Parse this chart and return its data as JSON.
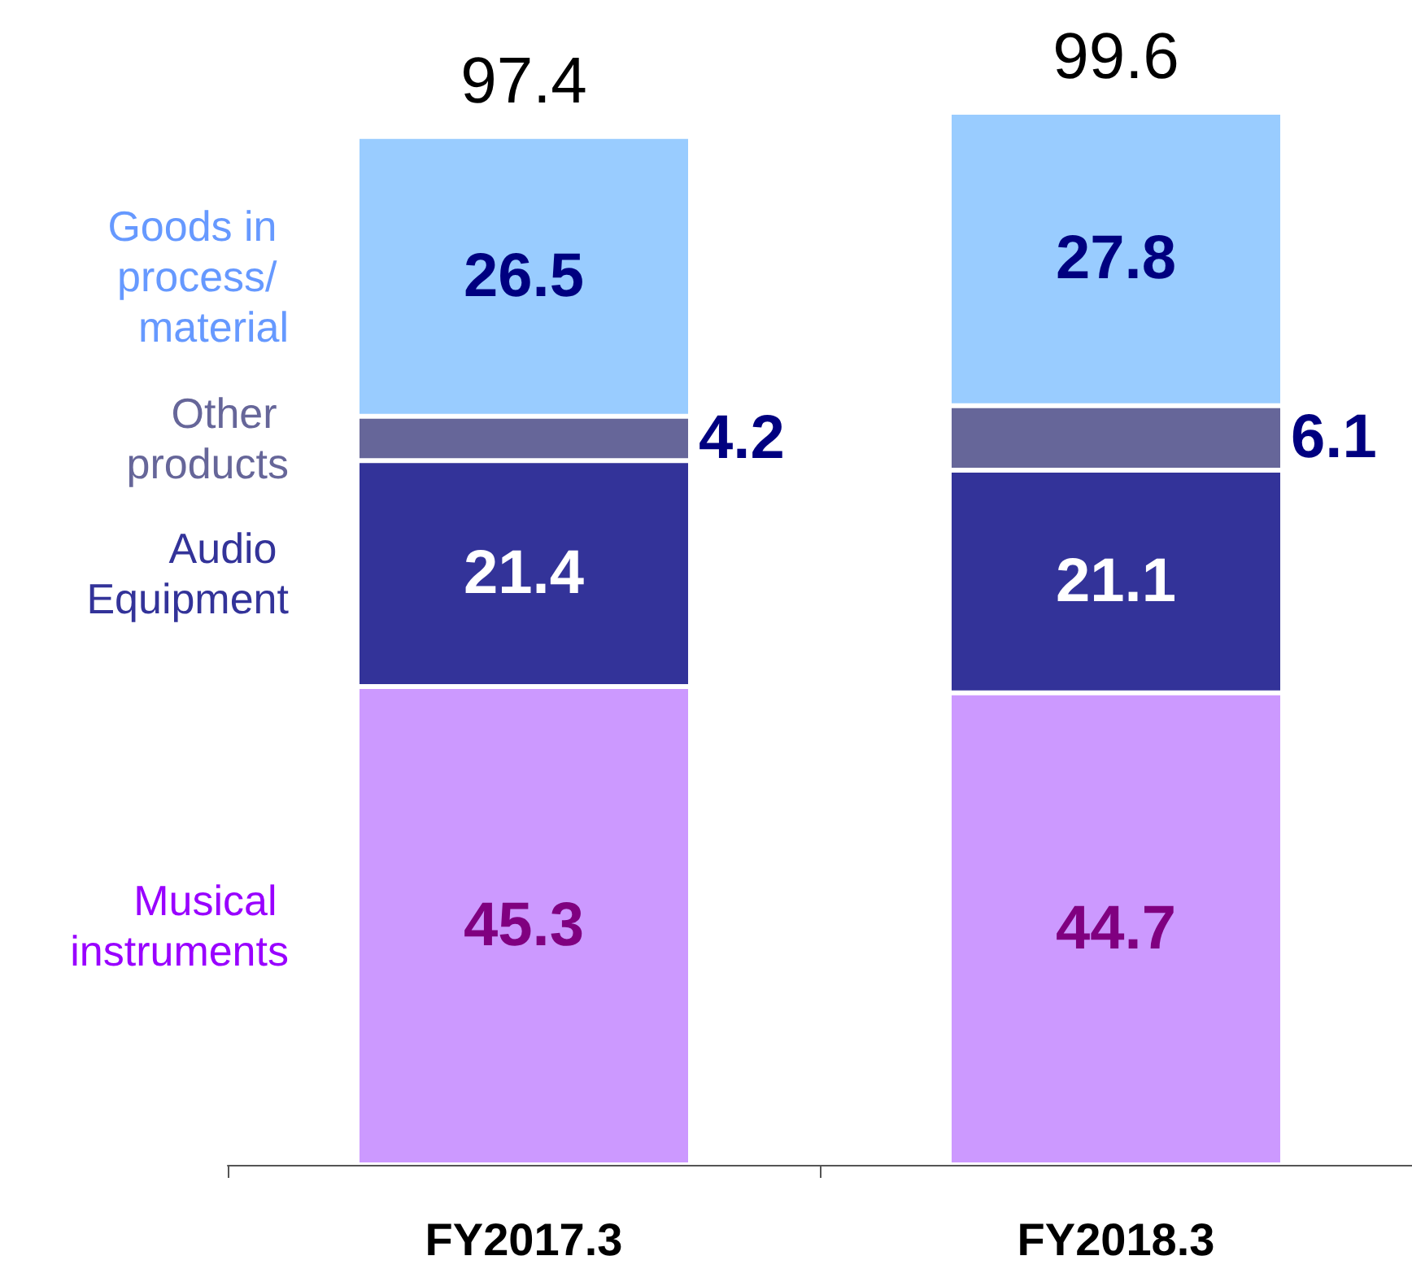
{
  "chart_data": {
    "type": "bar",
    "stacked": true,
    "categories": [
      "FY2017.3",
      "FY2018.3"
    ],
    "series": [
      {
        "name": "Musical instruments",
        "color": "#cc99ff",
        "values": [
          45.3,
          44.7
        ]
      },
      {
        "name": "Audio Equipment",
        "color": "#333399",
        "values": [
          21.4,
          21.1
        ]
      },
      {
        "name": "Other products",
        "color": "#666699",
        "values": [
          4.2,
          6.1
        ]
      },
      {
        "name": "Goods in process/ material",
        "color": "#99ccff",
        "values": [
          26.5,
          27.8
        ]
      }
    ],
    "data_labels": true,
    "totals": [
      "97.4",
      "99.6"
    ],
    "grid": false,
    "legend": false
  }
}
